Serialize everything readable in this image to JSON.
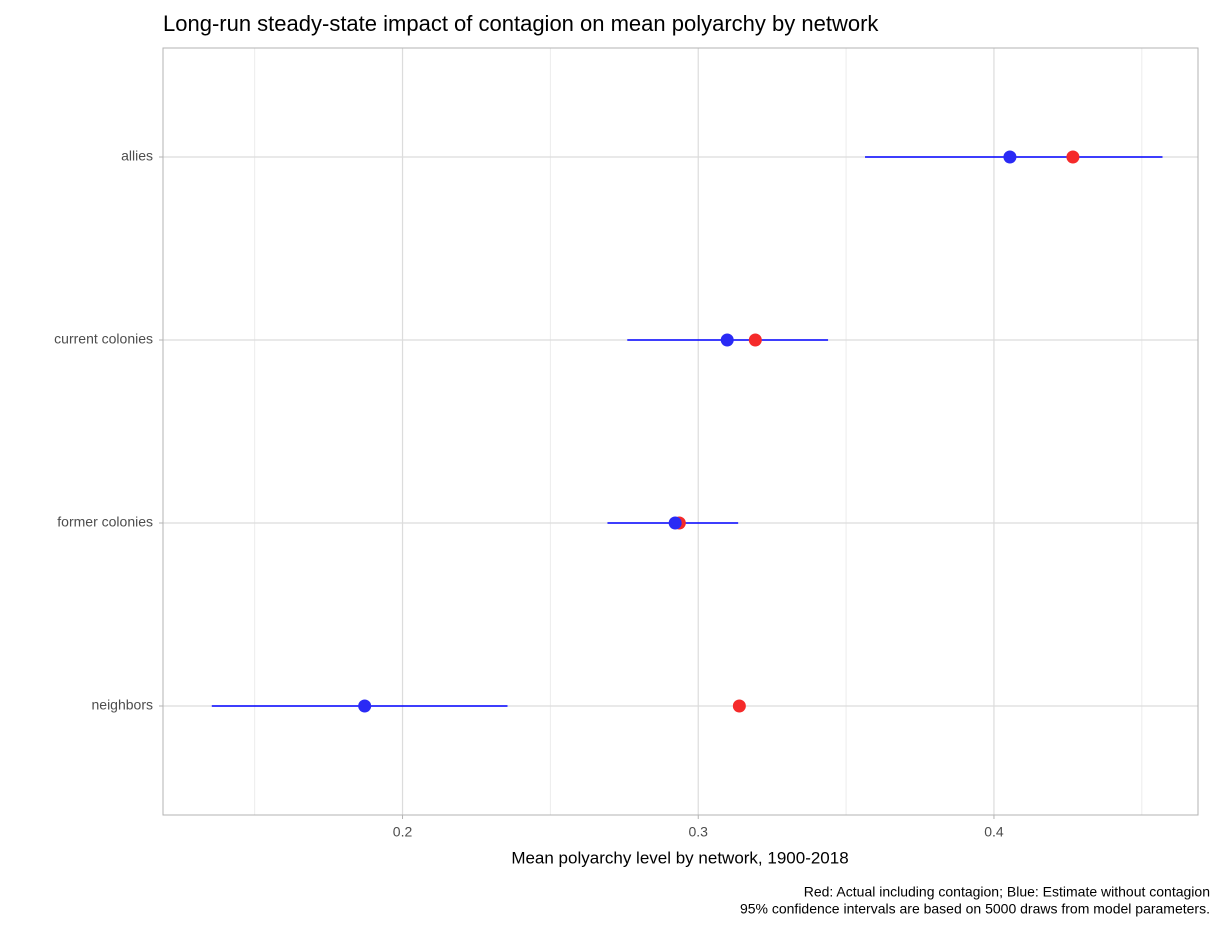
{
  "chart_data": {
    "type": "dotplot",
    "title": "Long-run steady-state impact of contagion on mean polyarchy by network",
    "xlabel": "Mean polyarchy level by network, 1900-2018",
    "caption": [
      "Red: Actual including contagion; Blue: Estimate without contagion",
      "95% confidence intervals are based on 5000 draws from model parameters."
    ],
    "categories": [
      "allies",
      "current colonies",
      "former colonies",
      "neighbors"
    ],
    "series": [
      {
        "color": "#f52a2a",
        "values": [
          0.4267,
          0.3193,
          0.2936,
          0.3139
        ]
      },
      {
        "color": "#2a2af5",
        "values": [
          0.4054,
          0.3098,
          0.2922,
          0.1872
        ],
        "lower": [
          0.3564,
          0.276,
          0.2693,
          0.1355
        ],
        "upper": [
          0.457,
          0.3439,
          0.3135,
          0.2355
        ],
        "interval_color": "#0000ff"
      }
    ],
    "xlim": [
      0.119,
      0.469
    ],
    "xticks": [
      0.2,
      0.3,
      0.4
    ],
    "xminor": [
      0.15,
      0.25,
      0.35,
      0.45
    ],
    "grid": true
  }
}
